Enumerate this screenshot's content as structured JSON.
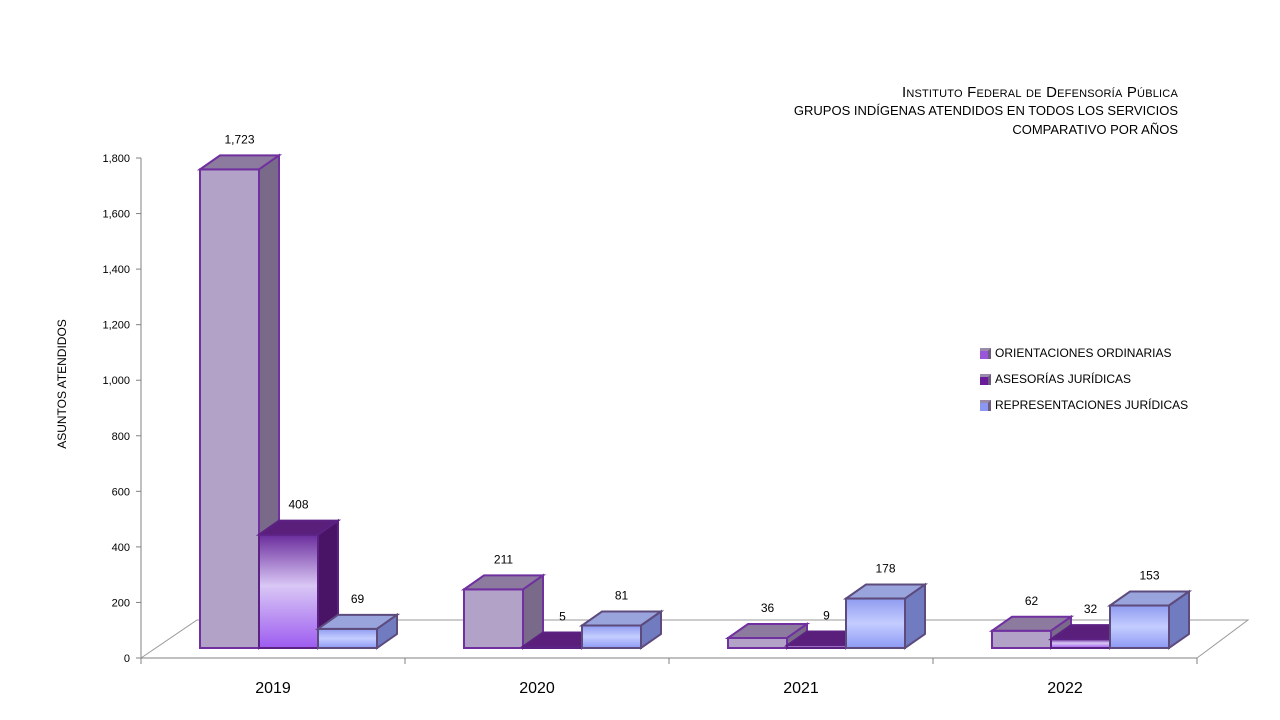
{
  "chart_data": {
    "type": "bar",
    "title": "Instituto Federal de Defensoría Pública",
    "subtitle_lines": [
      "GRUPOS INDÍGENAS ATENDIDOS EN TODOS LOS SERVICIOS",
      "COMPARATIVO POR AÑOS"
    ],
    "ylabel": "ASUNTOS ATENDIDOS",
    "xlabel": "",
    "ylim": [
      0,
      1800
    ],
    "yticks": [
      0,
      200,
      400,
      600,
      800,
      1000,
      1200,
      1400,
      1600,
      1800
    ],
    "ytick_labels": [
      "0",
      "200",
      "400",
      "600",
      "800",
      "1,000",
      "1,200",
      "1,400",
      "1,600",
      "1,800"
    ],
    "categories": [
      "2019",
      "2020",
      "2021",
      "2022"
    ],
    "series": [
      {
        "name": "ORIENTACIONES ORDINARIAS",
        "values": [
          1723,
          211,
          36,
          62
        ],
        "labels": [
          "1,723",
          "211",
          "36",
          "62"
        ],
        "color": "#b3a2c7"
      },
      {
        "name": "ASESORÍAS JURÍDICAS",
        "values": [
          408,
          5,
          9,
          32
        ],
        "labels": [
          "408",
          "5",
          "9",
          "32"
        ],
        "color": "#8f5ad0"
      },
      {
        "name": "REPRESENTACIONES JURÍDICAS",
        "values": [
          69,
          81,
          178,
          153
        ],
        "labels": [
          "69",
          "81",
          "178",
          "153"
        ],
        "color": "#a9b4ff"
      }
    ],
    "legend_position": "right",
    "grid": false
  }
}
